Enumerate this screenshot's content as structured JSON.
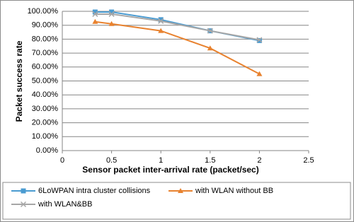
{
  "chart_data": {
    "type": "line",
    "x_label": "Sensor packet inter-arrival rate (packet/sec)",
    "y_label": "Packet success rate",
    "x": [
      0.333,
      0.5,
      1,
      1.5,
      2
    ],
    "series": [
      {
        "name": "6LoWPAN intra  cluster collisions",
        "color": "#4a9bd1",
        "marker": "square",
        "values": [
          99.5,
          99.5,
          94,
          86,
          79
        ]
      },
      {
        "name": "with WLAN without BB",
        "color": "#e8822f",
        "marker": "triangle",
        "values": [
          92.5,
          91,
          86,
          73.5,
          55
        ]
      },
      {
        "name": "with WLAN&BB",
        "color": "#a6a6a6",
        "marker": "x",
        "values": [
          98,
          98,
          93,
          86,
          79.5
        ]
      }
    ],
    "xlim": [
      0,
      2.5
    ],
    "xticks": [
      0,
      0.5,
      1,
      1.5,
      2,
      2.5
    ],
    "ylim": [
      0,
      100
    ],
    "yticks": [
      {
        "value": 0,
        "label": "0.00%"
      },
      {
        "value": 10,
        "label": "10.00%"
      },
      {
        "value": 20,
        "label": "20.00%"
      },
      {
        "value": 30,
        "label": "30.00%"
      },
      {
        "value": 40,
        "label": "40.00%"
      },
      {
        "value": 50,
        "label": "50.00%"
      },
      {
        "value": 60,
        "label": "60.00%"
      },
      {
        "value": 70,
        "label": "70.00%"
      },
      {
        "value": 80,
        "label": "80.00%"
      },
      {
        "value": 90,
        "label": "90.00%"
      },
      {
        "value": 100,
        "label": "100.00%"
      }
    ],
    "grid": true,
    "legend": "bottom"
  }
}
